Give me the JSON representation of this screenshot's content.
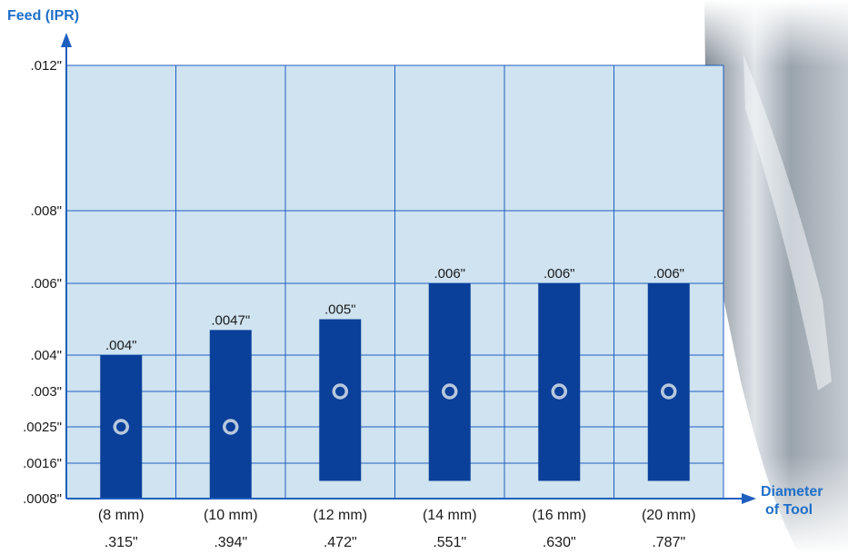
{
  "chart_data": {
    "type": "bar",
    "y_axis_title": "Feed (IPR)",
    "x_axis_title_line1": "Diameter",
    "x_axis_title_line2": "of Tool",
    "y_ticks": [
      {
        "value": 0.0008,
        "label": ".0008\""
      },
      {
        "value": 0.0016,
        "label": ".0016\""
      },
      {
        "value": 0.0025,
        "label": ".0025\""
      },
      {
        "value": 0.003,
        "label": ".003\""
      },
      {
        "value": 0.004,
        "label": ".004\""
      },
      {
        "value": 0.006,
        "label": ".006\""
      },
      {
        "value": 0.008,
        "label": ".008\""
      },
      {
        "value": 0.012,
        "label": ".012\""
      }
    ],
    "categories": [
      {
        "mm": "(8 mm)",
        "inch": ".315\""
      },
      {
        "mm": "(10 mm)",
        "inch": ".394\""
      },
      {
        "mm": "(12 mm)",
        "inch": ".472\""
      },
      {
        "mm": "(14 mm)",
        "inch": ".551\""
      },
      {
        "mm": "(16 mm)",
        "inch": ".630\""
      },
      {
        "mm": "(20 mm)",
        "inch": ".787\""
      }
    ],
    "bars": [
      {
        "low": 0.0008,
        "high": 0.004,
        "marker": 0.0025,
        "label": ".004\""
      },
      {
        "low": 0.0008,
        "high": 0.0047,
        "marker": 0.0025,
        "label": ".0047\""
      },
      {
        "low": 0.0012,
        "high": 0.005,
        "marker": 0.003,
        "label": ".005\""
      },
      {
        "low": 0.0012,
        "high": 0.006,
        "marker": 0.003,
        "label": ".006\""
      },
      {
        "low": 0.0012,
        "high": 0.006,
        "marker": 0.003,
        "label": ".006\""
      },
      {
        "low": 0.0012,
        "high": 0.006,
        "marker": 0.003,
        "label": ".006\""
      }
    ]
  },
  "colors": {
    "plot_background": "#cfe3f0",
    "grid": "#1f5fbf",
    "bar": "#0a3f9a",
    "marker": "#b8c8dc",
    "axis_title": "#1f6fc9",
    "axis": "#1f5fbf"
  }
}
